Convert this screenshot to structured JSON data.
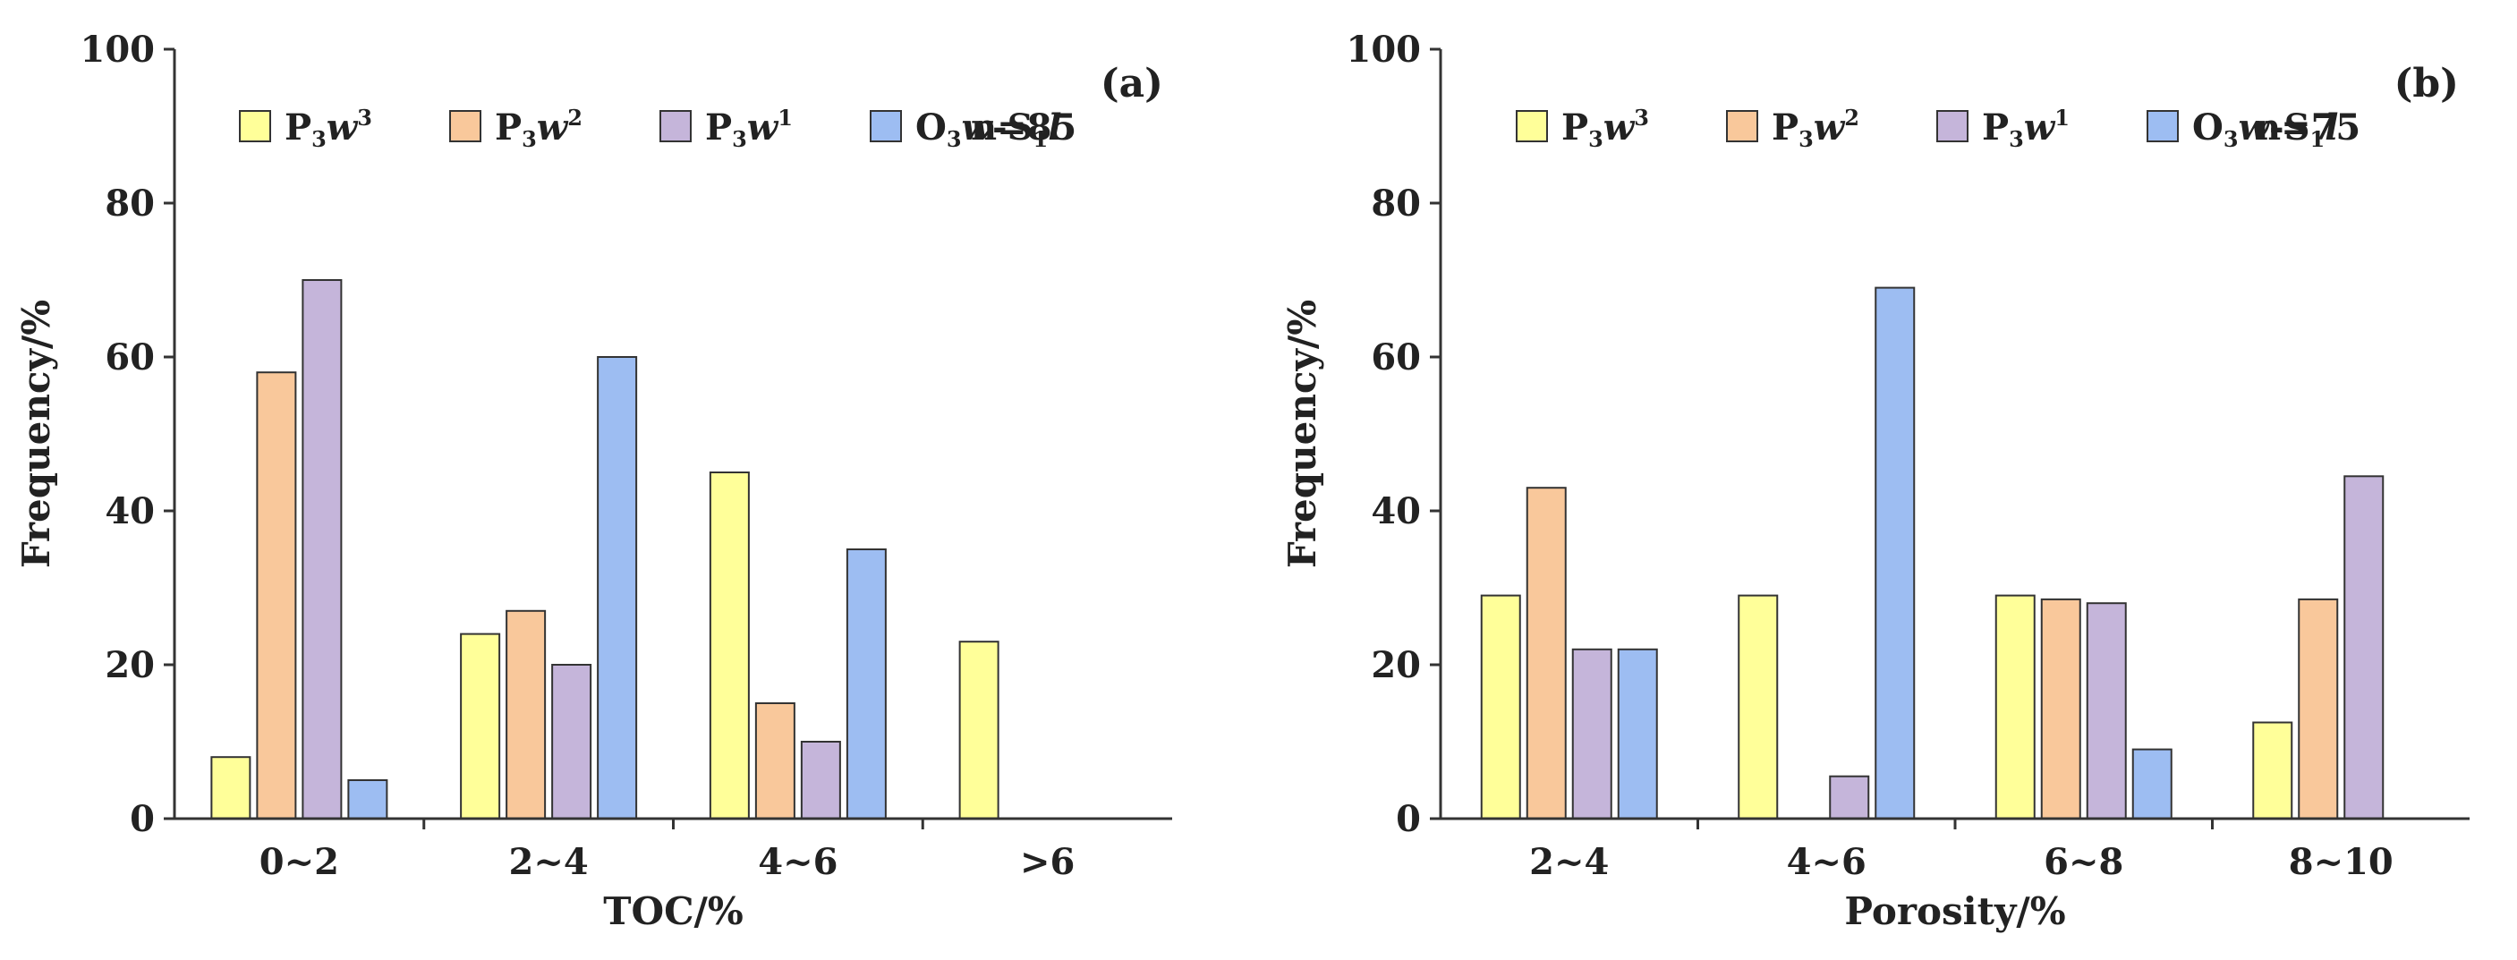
{
  "chart_data": [
    {
      "type": "bar",
      "panel_label": "(a)",
      "sample_count": "n=85",
      "xlabel": "TOC/%",
      "ylabel": "Frequency/%",
      "ylim": [
        0,
        100
      ],
      "yticks": [
        "0",
        "20",
        "40",
        "60",
        "80",
        "100"
      ],
      "categories": [
        "0~2",
        "2~4",
        "4~6",
        ">6"
      ],
      "series": [
        {
          "name": "P3w3",
          "color": "#ffff99",
          "values": [
            8,
            24,
            45,
            23
          ]
        },
        {
          "name": "P3w2",
          "color": "#f9c89b",
          "values": [
            58,
            27,
            15,
            0
          ]
        },
        {
          "name": "P3w1",
          "color": "#c5b5da",
          "values": [
            70,
            20,
            10,
            0
          ]
        },
        {
          "name": "O3w-S1l",
          "color": "#9dbdf2",
          "values": [
            5,
            60,
            35,
            0
          ]
        }
      ]
    },
    {
      "type": "bar",
      "panel_label": "(b)",
      "sample_count": "n=75",
      "xlabel": "Porosity/%",
      "ylabel": "Frequency/%",
      "ylim": [
        0,
        100
      ],
      "yticks": [
        "0",
        "20",
        "40",
        "60",
        "80",
        "100"
      ],
      "categories": [
        "2~4",
        "4~6",
        "6~8",
        "8~10"
      ],
      "series": [
        {
          "name": "P3w3",
          "color": "#ffff99",
          "values": [
            29,
            29,
            29,
            12.5
          ]
        },
        {
          "name": "P3w2",
          "color": "#f9c89b",
          "values": [
            43,
            0,
            28.5,
            28.5
          ]
        },
        {
          "name": "P3w1",
          "color": "#c5b5da",
          "values": [
            22,
            5.5,
            28,
            44.5
          ]
        },
        {
          "name": "O3w-S1l",
          "color": "#9dbdf2",
          "values": [
            22,
            69,
            9,
            0
          ]
        }
      ]
    }
  ],
  "legend": [
    {
      "base": "P",
      "sub": "3",
      "italic": "w",
      "sup": "3"
    },
    {
      "base": "P",
      "sub": "3",
      "italic": "w",
      "sup": "2"
    },
    {
      "base": "P",
      "sub": "3",
      "italic": "w",
      "sup": "1"
    },
    {
      "base": "O",
      "sub": "3",
      "italic": "w",
      "mid": "-S",
      "sub2": "1",
      "italic2": "l"
    }
  ]
}
